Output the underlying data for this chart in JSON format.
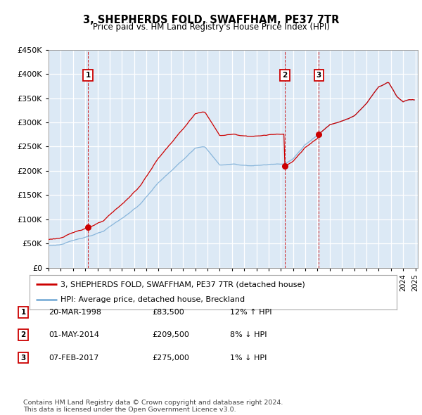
{
  "title": "3, SHEPHERDS FOLD, SWAFFHAM, PE37 7TR",
  "subtitle": "Price paid vs. HM Land Registry's House Price Index (HPI)",
  "ylim": [
    0,
    450000
  ],
  "yticks": [
    0,
    50000,
    100000,
    150000,
    200000,
    250000,
    300000,
    350000,
    400000,
    450000
  ],
  "xlim_start": 1995.0,
  "xlim_end": 2025.2,
  "background_color": "#dce9f5",
  "grid_color": "#ffffff",
  "red_line_color": "#cc0000",
  "blue_line_color": "#7fb0d8",
  "sale_points": [
    {
      "year": 1998.22,
      "price": 83500,
      "label": "1"
    },
    {
      "year": 2014.33,
      "price": 209500,
      "label": "2"
    },
    {
      "year": 2017.1,
      "price": 275000,
      "label": "3"
    }
  ],
  "legend_line1": "3, SHEPHERDS FOLD, SWAFFHAM, PE37 7TR (detached house)",
  "legend_line2": "HPI: Average price, detached house, Breckland",
  "table_rows": [
    {
      "num": "1",
      "date": "20-MAR-1998",
      "price": "£83,500",
      "hpi": "12% ↑ HPI"
    },
    {
      "num": "2",
      "date": "01-MAY-2014",
      "price": "£209,500",
      "hpi": "8% ↓ HPI"
    },
    {
      "num": "3",
      "date": "07-FEB-2017",
      "price": "£275,000",
      "hpi": "1% ↓ HPI"
    }
  ],
  "footnote": "Contains HM Land Registry data © Crown copyright and database right 2024.\nThis data is licensed under the Open Government Licence v3.0."
}
